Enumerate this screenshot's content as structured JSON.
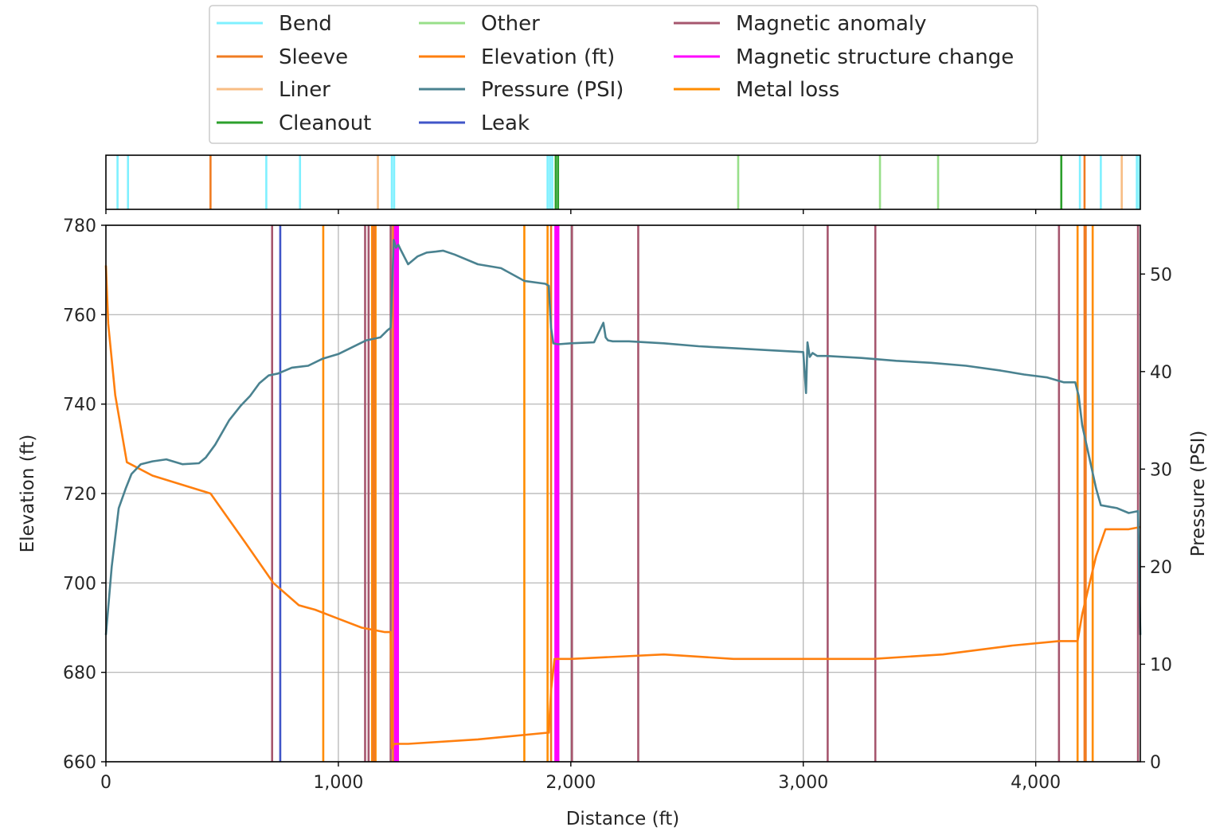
{
  "chart_data": {
    "type": "line",
    "xlabel": "Distance (ft)",
    "ylabel_left": "Elevation (ft)",
    "ylabel_right": "Pressure (PSI)",
    "xlim": [
      0,
      4450
    ],
    "ylim_left": [
      660,
      780
    ],
    "ylim_right": [
      0,
      55
    ],
    "x_ticks": [
      0,
      1000,
      2000,
      3000,
      4000
    ],
    "x_tick_labels": [
      "0",
      "1,000",
      "2,000",
      "3,000",
      "4,000"
    ],
    "y_ticks_left": [
      660,
      680,
      700,
      720,
      740,
      760,
      780
    ],
    "y_tick_labels_left": [
      "660",
      "680",
      "700",
      "720",
      "740",
      "760",
      "780"
    ],
    "y_ticks_right": [
      0,
      10,
      20,
      30,
      40,
      50
    ],
    "y_tick_labels_right": [
      "0",
      "10",
      "20",
      "30",
      "40",
      "50"
    ],
    "grid": true,
    "legend_placement": "above-top",
    "legend": [
      {
        "label": "Bend",
        "color": "#7ff0ff"
      },
      {
        "label": "Sleeve",
        "color": "#f07c22"
      },
      {
        "label": "Liner",
        "color": "#f8bd84"
      },
      {
        "label": "Cleanout",
        "color": "#2ca02c"
      },
      {
        "label": "Other",
        "color": "#98df8a"
      },
      {
        "label": "Elevation (ft)",
        "color": "#ff7f0e"
      },
      {
        "label": "Pressure (PSI)",
        "color": "#4a8290"
      },
      {
        "label": "Leak",
        "color": "#4055c8"
      },
      {
        "label": "Magnetic anomaly",
        "color": "#a6566e"
      },
      {
        "label": "Magnetic structure change",
        "color": "#ff00ff"
      },
      {
        "label": "Metal loss",
        "color": "#ff8c00"
      }
    ],
    "series": [
      {
        "name": "Elevation (ft)",
        "axis": "left",
        "color": "#ff7f0e",
        "x": [
          0,
          10,
          40,
          90,
          200,
          450,
          600,
          720,
          830,
          900,
          1000,
          1100,
          1200,
          1225,
          1230,
          1240,
          1300,
          1600,
          1900,
          1905,
          1915,
          1930,
          2000,
          2200,
          2400,
          2700,
          3000,
          3300,
          3600,
          3900,
          4100,
          4180,
          4200,
          4260,
          4300,
          4400,
          4450
        ],
        "y": [
          771,
          758,
          742,
          727,
          724,
          720,
          709,
          700,
          695,
          694,
          692,
          690,
          689,
          689,
          663,
          664,
          664,
          665,
          666.5,
          666.5,
          676,
          683,
          683,
          683.5,
          684,
          683,
          683,
          683,
          684,
          686,
          687,
          687,
          693,
          706,
          712,
          712,
          712.5
        ]
      },
      {
        "name": "Pressure (PSI)",
        "axis": "right",
        "color": "#4a8290",
        "x": [
          0,
          25,
          55,
          85,
          110,
          150,
          200,
          260,
          330,
          400,
          430,
          470,
          530,
          580,
          620,
          660,
          700,
          740,
          800,
          870,
          930,
          1000,
          1060,
          1120,
          1180,
          1210,
          1225,
          1232,
          1238,
          1248,
          1258,
          1268,
          1300,
          1340,
          1380,
          1420,
          1450,
          1500,
          1600,
          1700,
          1800,
          1890,
          1905,
          1915,
          1925,
          1945,
          2000,
          2100,
          2140,
          2150,
          2160,
          2180,
          2250,
          2400,
          2550,
          2700,
          2850,
          3000,
          3012,
          3018,
          3028,
          3040,
          3060,
          3100,
          3250,
          3400,
          3550,
          3700,
          3850,
          3950,
          4050,
          4120,
          4170,
          4185,
          4200,
          4260,
          4280,
          4350,
          4400,
          4440,
          4450
        ],
        "y": [
          13,
          20,
          26,
          28,
          29.5,
          30.5,
          30.8,
          31,
          30.5,
          30.6,
          31.2,
          32.5,
          35,
          36.5,
          37.5,
          38.8,
          39.6,
          39.8,
          40.4,
          40.6,
          41.3,
          41.8,
          42.5,
          43.2,
          43.5,
          44.2,
          44.5,
          49,
          53.5,
          52.7,
          53,
          52.5,
          51,
          51.8,
          52.2,
          52.3,
          52.4,
          52,
          51,
          50.6,
          49.3,
          49,
          48.8,
          44.5,
          42.9,
          42.8,
          42.9,
          43,
          45,
          43.5,
          43.2,
          43.1,
          43.1,
          42.9,
          42.6,
          42.4,
          42.2,
          42,
          37.8,
          43,
          41.5,
          41.9,
          41.6,
          41.6,
          41.4,
          41.1,
          40.9,
          40.6,
          40.1,
          39.7,
          39.4,
          38.9,
          38.9,
          37.5,
          34.5,
          28,
          26.3,
          26,
          25.5,
          25.7,
          13
        ]
      }
    ],
    "event_lines": [
      {
        "type": "Magnetic anomaly",
        "x": [
          715,
          1115,
          1130,
          1225,
          2005,
          2290,
          3105,
          3310,
          4100,
          4440
        ]
      },
      {
        "type": "Leak",
        "x": [
          750
        ]
      },
      {
        "type": "Metal loss",
        "x": [
          935,
          1145,
          1160,
          1800,
          1900,
          4180,
          4245
        ]
      },
      {
        "type": "Sleeve",
        "x": [
          1150,
          1155,
          1235,
          1915,
          4210,
          4215
        ]
      },
      {
        "type": "Magnetic structure change",
        "x": [
          1245,
          1255,
          1935,
          1945
        ]
      }
    ],
    "strip_lines": [
      {
        "type": "Bend",
        "x": [
          50,
          95,
          690,
          835,
          1230,
          1240,
          1900,
          1910,
          1920,
          4190,
          4280,
          4435,
          4445
        ]
      },
      {
        "type": "Sleeve",
        "x": [
          450,
          4210
        ]
      },
      {
        "type": "Liner",
        "x": [
          1170,
          4370
        ]
      },
      {
        "type": "Cleanout",
        "x": [
          1935,
          1945,
          4110
        ]
      },
      {
        "type": "Other",
        "x": [
          2720,
          3330,
          3580
        ]
      }
    ]
  }
}
